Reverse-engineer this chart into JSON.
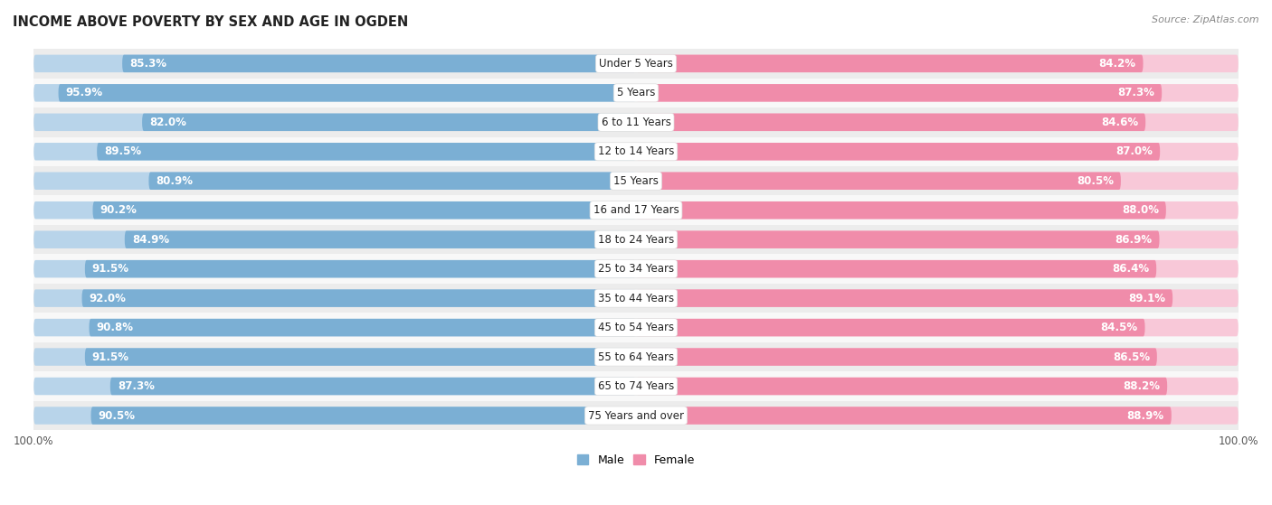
{
  "title": "INCOME ABOVE POVERTY BY SEX AND AGE IN OGDEN",
  "source": "Source: ZipAtlas.com",
  "categories": [
    "Under 5 Years",
    "5 Years",
    "6 to 11 Years",
    "12 to 14 Years",
    "15 Years",
    "16 and 17 Years",
    "18 to 24 Years",
    "25 to 34 Years",
    "35 to 44 Years",
    "45 to 54 Years",
    "55 to 64 Years",
    "65 to 74 Years",
    "75 Years and over"
  ],
  "male_values": [
    85.3,
    95.9,
    82.0,
    89.5,
    80.9,
    90.2,
    84.9,
    91.5,
    92.0,
    90.8,
    91.5,
    87.3,
    90.5
  ],
  "female_values": [
    84.2,
    87.3,
    84.6,
    87.0,
    80.5,
    88.0,
    86.9,
    86.4,
    89.1,
    84.5,
    86.5,
    88.2,
    88.9
  ],
  "male_color": "#7bafd4",
  "female_color": "#f08caa",
  "male_light_color": "#b8d4ea",
  "female_light_color": "#f8c8d8",
  "row_odd_color": "#ececec",
  "row_even_color": "#f8f8f8",
  "max_val": 100.0,
  "title_fontsize": 10.5,
  "label_fontsize": 8.5,
  "value_fontsize": 8.5,
  "tick_fontsize": 8.5,
  "legend_fontsize": 9
}
